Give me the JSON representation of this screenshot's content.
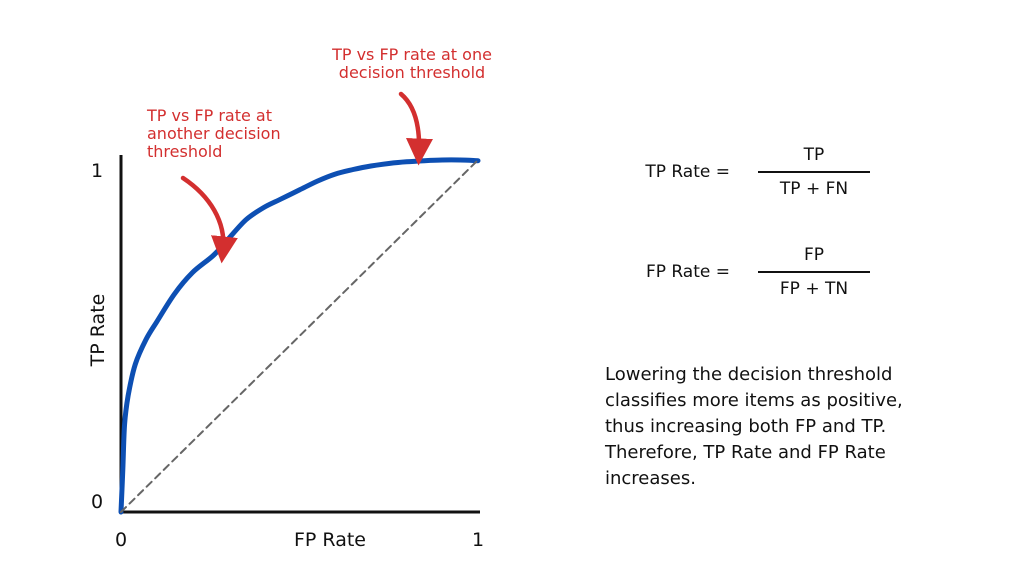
{
  "chart_data": {
    "type": "line",
    "xlabel": "FP Rate",
    "ylabel": "TP Rate",
    "xlim": [
      0,
      1
    ],
    "ylim": [
      0,
      1
    ],
    "x_ticks": [
      "0",
      "1"
    ],
    "y_ticks": [
      "0",
      "1"
    ],
    "grid": false,
    "series": [
      {
        "color": "#0d4fb3",
        "x": [
          0,
          0.005,
          0.01,
          0.02,
          0.04,
          0.07,
          0.1,
          0.15,
          0.2,
          0.26,
          0.3,
          0.35,
          0.4,
          0.45,
          0.5,
          0.55,
          0.6,
          0.65,
          0.7,
          0.75,
          0.8,
          0.85,
          0.9,
          0.95,
          1.0
        ],
        "y": [
          0.0,
          0.12,
          0.25,
          0.33,
          0.42,
          0.49,
          0.54,
          0.62,
          0.68,
          0.73,
          0.775,
          0.83,
          0.865,
          0.89,
          0.915,
          0.94,
          0.96,
          0.973,
          0.983,
          0.99,
          0.995,
          0.998,
          1.0,
          1.0,
          0.998
        ]
      },
      {
        "color": "#666666",
        "style": "dashed",
        "x": [
          0,
          1
        ],
        "y": [
          0,
          1
        ]
      }
    ],
    "annotations": [
      {
        "text": [
          "TP vs FP rate at one",
          "decision threshold"
        ],
        "point": [
          0.83,
          0.995
        ],
        "color": "#d32f2f"
      },
      {
        "text": [
          "TP vs FP rate at",
          "another decision",
          "threshold"
        ],
        "point": [
          0.29,
          0.75
        ],
        "color": "#d32f2f"
      }
    ]
  },
  "formulas": {
    "tp_rate": {
      "label": "TP Rate =",
      "numerator": "TP",
      "denominator": "TP + FN"
    },
    "fp_rate": {
      "label": "FP Rate =",
      "numerator": "FP",
      "denominator": "FP + TN"
    }
  },
  "explanation": "Lowering the decision threshold classifies more items as positive, thus increasing both FP and TP. Therefore, TP Rate and FP Rate increases."
}
